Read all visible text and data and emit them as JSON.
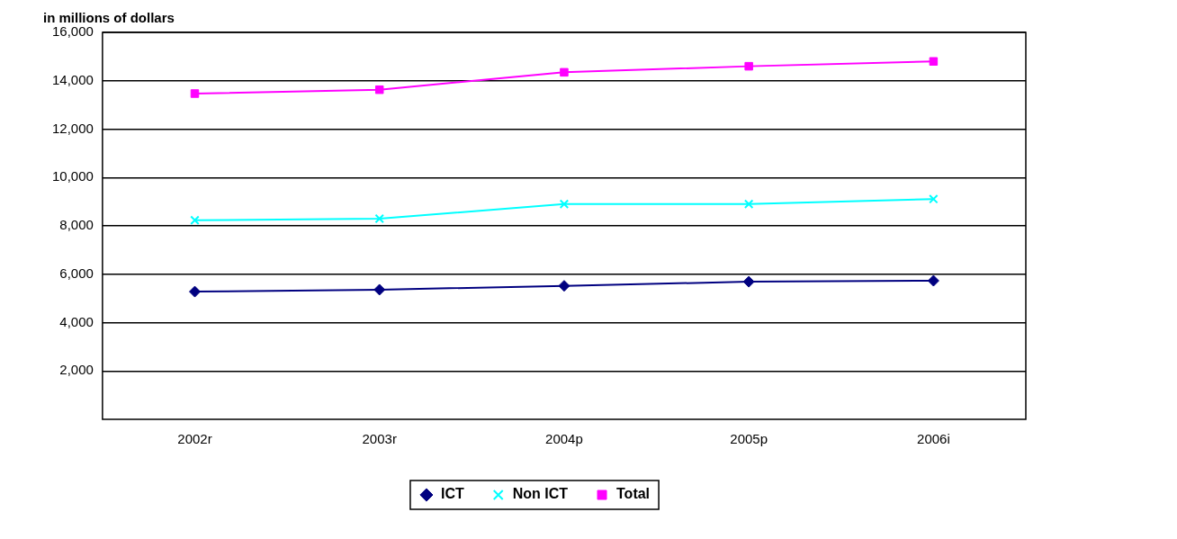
{
  "chart_data": {
    "type": "line",
    "ylabel": "in millions of dollars",
    "categories": [
      "2002r",
      "2003r",
      "2004p",
      "2005p",
      "2006i"
    ],
    "series": [
      {
        "name": "ICT",
        "color": "#000080",
        "marker": "diamond",
        "values": [
          5280,
          5360,
          5520,
          5690,
          5730
        ]
      },
      {
        "name": "Non ICT",
        "color": "#00ffff",
        "marker": "cross",
        "values": [
          8230,
          8300,
          8900,
          8900,
          9110
        ]
      },
      {
        "name": "Total",
        "color": "#ff00ff",
        "marker": "square",
        "values": [
          13470,
          13630,
          14350,
          14600,
          14800
        ]
      }
    ],
    "ylim": [
      0,
      16000
    ],
    "yticks": [
      {
        "value": 2000,
        "label": "2,000"
      },
      {
        "value": 4000,
        "label": "4,000"
      },
      {
        "value": 6000,
        "label": "6,000"
      },
      {
        "value": 8000,
        "label": "8,000"
      },
      {
        "value": 10000,
        "label": "10,000"
      },
      {
        "value": 12000,
        "label": "12,000"
      },
      {
        "value": 14000,
        "label": "14,000"
      },
      {
        "value": 16000,
        "label": "16,000"
      }
    ],
    "grid": "y",
    "legend": "bottom"
  }
}
